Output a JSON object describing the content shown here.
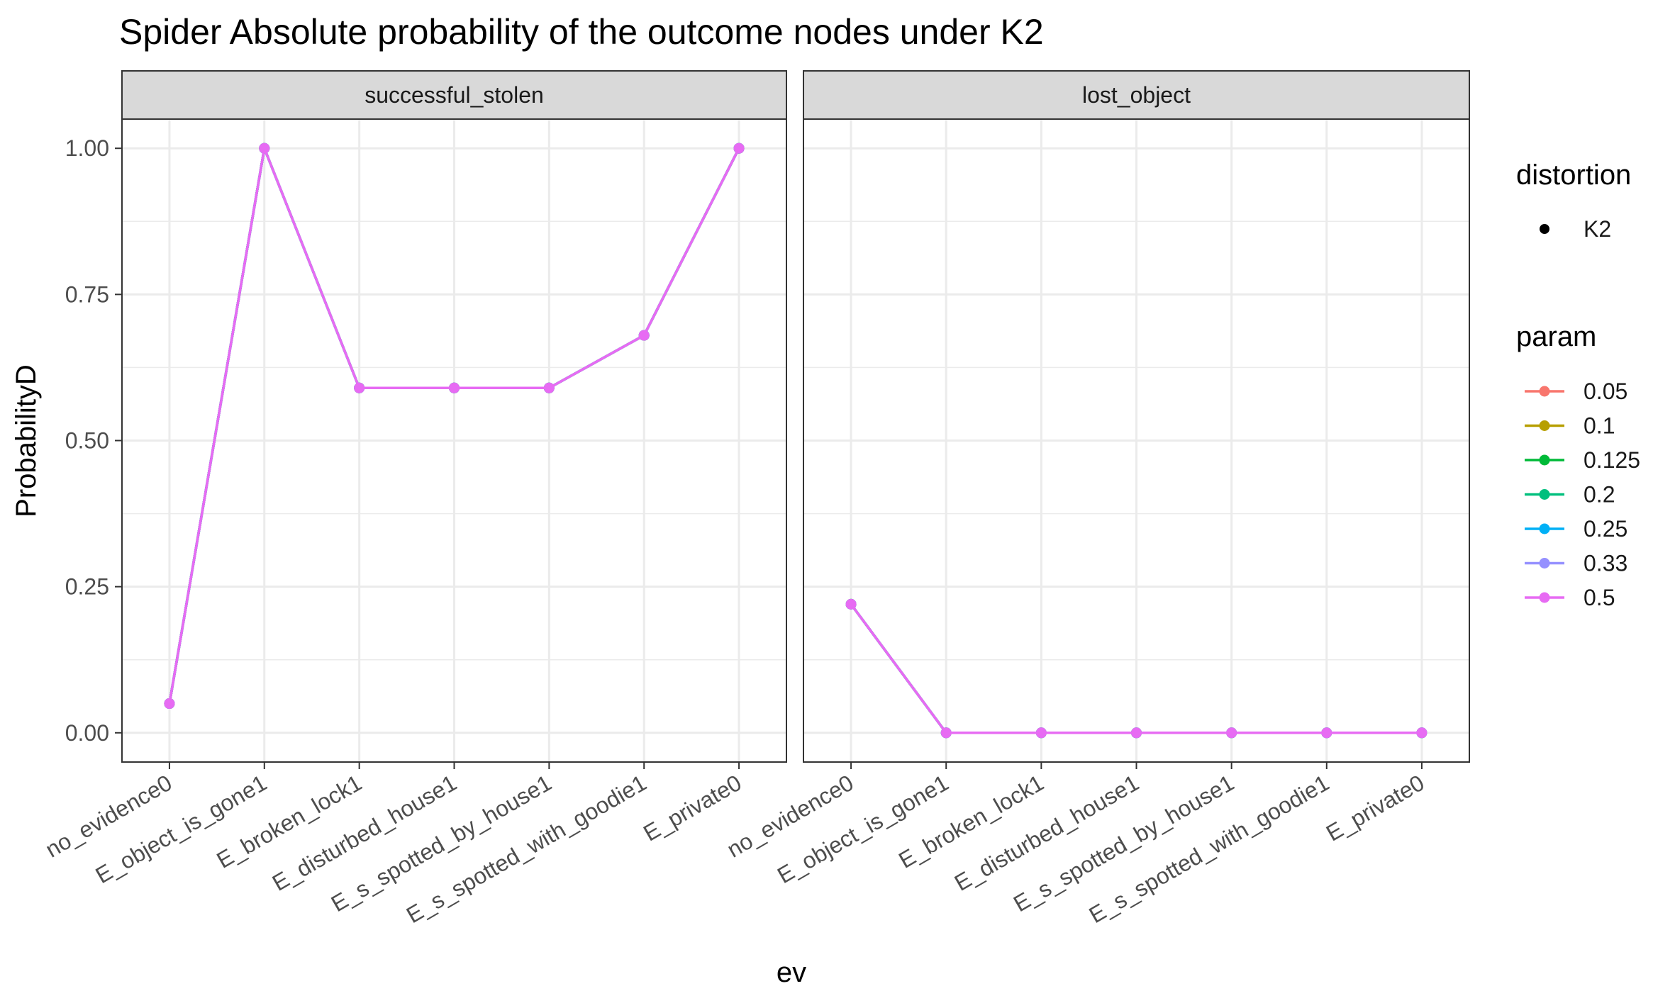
{
  "chart_data": {
    "type": "line",
    "title": "Spider Absolute probability of the outcome nodes under K2",
    "xlabel": "ev",
    "ylabel": "ProbabilityD",
    "ylim": [
      -0.05,
      1.05
    ],
    "yticks": [
      0.0,
      0.25,
      0.5,
      0.75,
      1.0
    ],
    "ytick_labels": [
      "0.00",
      "0.25",
      "0.50",
      "0.75",
      "1.00"
    ],
    "grid": true,
    "categories": [
      "no_evidence0",
      "E_object_is_gone1",
      "E_broken_lock1",
      "E_disturbed_house1",
      "E_s_spotted_by_house1",
      "E_s_spotted_with_goodie1",
      "E_private0"
    ],
    "facets": [
      {
        "label": "successful_stolen",
        "series": [
          {
            "name": "0.05",
            "values": [
              0.05,
              1.0,
              0.59,
              0.59,
              0.59,
              0.68,
              1.0
            ]
          },
          {
            "name": "0.1",
            "values": [
              0.05,
              1.0,
              0.59,
              0.59,
              0.59,
              0.68,
              1.0
            ]
          },
          {
            "name": "0.125",
            "values": [
              0.05,
              1.0,
              0.59,
              0.59,
              0.59,
              0.68,
              1.0
            ]
          },
          {
            "name": "0.2",
            "values": [
              0.05,
              1.0,
              0.59,
              0.59,
              0.59,
              0.68,
              1.0
            ]
          },
          {
            "name": "0.25",
            "values": [
              0.05,
              1.0,
              0.59,
              0.59,
              0.59,
              0.68,
              1.0
            ]
          },
          {
            "name": "0.33",
            "values": [
              0.05,
              1.0,
              0.59,
              0.59,
              0.59,
              0.68,
              1.0
            ]
          },
          {
            "name": "0.5",
            "values": [
              0.05,
              1.0,
              0.59,
              0.59,
              0.59,
              0.68,
              1.0
            ]
          }
        ]
      },
      {
        "label": "lost_object",
        "series": [
          {
            "name": "0.05",
            "values": [
              0.22,
              0.0,
              0.0,
              0.0,
              0.0,
              0.0,
              0.0
            ]
          },
          {
            "name": "0.1",
            "values": [
              0.22,
              0.0,
              0.0,
              0.0,
              0.0,
              0.0,
              0.0
            ]
          },
          {
            "name": "0.125",
            "values": [
              0.22,
              0.0,
              0.0,
              0.0,
              0.0,
              0.0,
              0.0
            ]
          },
          {
            "name": "0.2",
            "values": [
              0.22,
              0.0,
              0.0,
              0.0,
              0.0,
              0.0,
              0.0
            ]
          },
          {
            "name": "0.25",
            "values": [
              0.22,
              0.0,
              0.0,
              0.0,
              0.0,
              0.0,
              0.0
            ]
          },
          {
            "name": "0.33",
            "values": [
              0.22,
              0.0,
              0.0,
              0.0,
              0.0,
              0.0,
              0.0
            ]
          },
          {
            "name": "0.5",
            "values": [
              0.22,
              0.0,
              0.0,
              0.0,
              0.0,
              0.0,
              0.0
            ]
          }
        ]
      }
    ],
    "legend": {
      "placement": "right",
      "distortion": {
        "title": "distortion",
        "items": [
          {
            "label": "K2",
            "color": "#000000"
          }
        ]
      },
      "param": {
        "title": "param",
        "items": [
          {
            "label": "0.05",
            "color": "#F8766D"
          },
          {
            "label": "0.1",
            "color": "#B79F00"
          },
          {
            "label": "0.125",
            "color": "#00BA38"
          },
          {
            "label": "0.2",
            "color": "#00BF7D"
          },
          {
            "label": "0.25",
            "color": "#00B0F6"
          },
          {
            "label": "0.33",
            "color": "#9590FF"
          },
          {
            "label": "0.5",
            "color": "#E76BF3"
          }
        ]
      }
    },
    "colors": {
      "strip_bg": "#D9D9D9",
      "panel_border": "#333333",
      "grid_major": "#EBEBEB",
      "top_line": "#EA4BD4"
    }
  }
}
